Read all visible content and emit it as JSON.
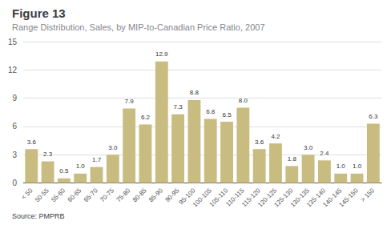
{
  "chart_data": {
    "type": "bar",
    "title": "Figure 13",
    "subtitle": "Range Distribution, Sales, by MIP-to-Canadian Price Ratio, 2007",
    "source": "Source: PMPRB",
    "categories": [
      "< 50",
      "50-55",
      "55-60",
      "60-65",
      "65-70",
      "70-75",
      "75-80",
      "80-85",
      "85-90",
      "90-95",
      "95-100",
      "100-105",
      "105-110",
      "110-115",
      "115-120",
      "120-125",
      "125-130",
      "130-135",
      "135-140",
      "140-145",
      "145-150",
      "> 150"
    ],
    "values": [
      3.6,
      2.3,
      0.5,
      1.0,
      1.7,
      3.0,
      7.9,
      6.2,
      12.9,
      7.3,
      8.8,
      6.8,
      6.5,
      8.0,
      3.6,
      4.2,
      1.8,
      3.0,
      2.4,
      1.0,
      1.0,
      6.3
    ],
    "value_labels": [
      "3.6",
      "2.3",
      "0.5",
      "1.0",
      "1.7",
      "3.0",
      "7.9",
      "6.2",
      "12.9",
      "7.3",
      "8.8",
      "6.8",
      "6.5",
      "8.0",
      "3.6",
      "4.2",
      "1.8",
      "3.0",
      "2.4",
      "1.0",
      "1.0",
      "6.3"
    ],
    "color": "#C8BC80",
    "ylim": [
      0,
      15
    ],
    "yticks": [
      0,
      3,
      6,
      9,
      12,
      15
    ],
    "grid": true,
    "data_labels": true
  }
}
